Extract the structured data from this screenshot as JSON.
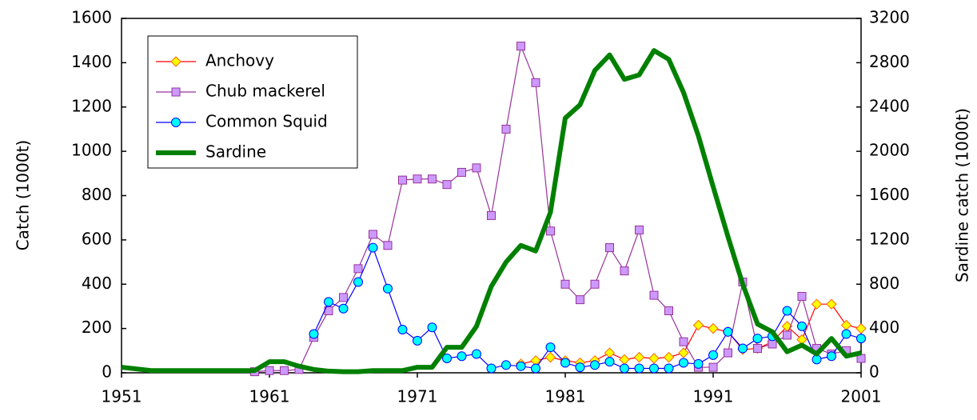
{
  "chart_data": {
    "type": "line",
    "y_label": "Catch (1000t)",
    "y2_label": "Sardine catch (1000t)",
    "x": [
      1951,
      1952,
      1953,
      1954,
      1955,
      1956,
      1957,
      1958,
      1959,
      1960,
      1961,
      1962,
      1963,
      1964,
      1965,
      1966,
      1967,
      1968,
      1969,
      1970,
      1971,
      1972,
      1973,
      1974,
      1975,
      1976,
      1977,
      1978,
      1979,
      1980,
      1981,
      1982,
      1983,
      1984,
      1985,
      1986,
      1987,
      1988,
      1989,
      1990,
      1991,
      1992,
      1993,
      1994,
      1995,
      1996,
      1997,
      1998,
      1999,
      2000,
      2001
    ],
    "xlim": [
      1951,
      2001
    ],
    "xticks": [
      1951,
      1961,
      1971,
      1981,
      1991,
      2001
    ],
    "ylim": [
      0,
      1600
    ],
    "yticks": [
      0,
      200,
      400,
      600,
      800,
      1000,
      1200,
      1400,
      1600
    ],
    "y2lim": [
      0,
      3200
    ],
    "y2ticks": [
      0,
      400,
      800,
      1200,
      1600,
      2000,
      2400,
      2800,
      3200
    ],
    "legend": "upper left",
    "series": [
      {
        "name": "Anchovy",
        "color": "#ff0000",
        "marker": "diamond",
        "marker_fill": "#ffff00",
        "marker_stroke": "#ff6600",
        "line_width": 1.2,
        "values": [
          null,
          null,
          null,
          null,
          null,
          null,
          null,
          null,
          null,
          null,
          null,
          null,
          null,
          null,
          null,
          null,
          null,
          null,
          null,
          null,
          null,
          null,
          null,
          null,
          null,
          null,
          null,
          40,
          55,
          70,
          55,
          45,
          55,
          90,
          60,
          70,
          65,
          70,
          90,
          215,
          200,
          185,
          105,
          110,
          140,
          210,
          150,
          310,
          310,
          215,
          200
        ]
      },
      {
        "name": "Chub mackerel",
        "color": "#993399",
        "marker": "square",
        "marker_fill": "#cc99ff",
        "marker_stroke": "#993399",
        "line_width": 1.2,
        "values": [
          null,
          null,
          null,
          null,
          null,
          null,
          null,
          null,
          null,
          5,
          10,
          10,
          15,
          160,
          280,
          340,
          470,
          625,
          575,
          870,
          875,
          875,
          850,
          905,
          925,
          710,
          1100,
          1475,
          1310,
          640,
          400,
          330,
          400,
          565,
          460,
          645,
          350,
          280,
          140,
          25,
          25,
          90,
          410,
          110,
          130,
          170,
          345,
          110,
          85,
          100,
          65
        ]
      },
      {
        "name": "Common Squid",
        "color": "#0000ff",
        "marker": "circle",
        "marker_fill": "#00ffff",
        "marker_stroke": "#0000ff",
        "line_width": 1.2,
        "values": [
          null,
          null,
          null,
          null,
          null,
          null,
          null,
          null,
          null,
          null,
          null,
          null,
          null,
          175,
          320,
          290,
          410,
          565,
          380,
          195,
          145,
          205,
          65,
          75,
          85,
          20,
          35,
          30,
          20,
          115,
          45,
          25,
          35,
          50,
          20,
          20,
          20,
          20,
          45,
          40,
          80,
          185,
          110,
          155,
          165,
          280,
          210,
          60,
          75,
          175,
          155
        ]
      },
      {
        "name": "Sardine",
        "color": "#008000",
        "marker": "none",
        "line_width": 6,
        "axis": "y2",
        "values": [
          50,
          35,
          20,
          20,
          20,
          20,
          20,
          20,
          20,
          20,
          100,
          100,
          60,
          30,
          15,
          10,
          10,
          20,
          20,
          20,
          50,
          50,
          230,
          230,
          420,
          780,
          1000,
          1150,
          1100,
          1450,
          2300,
          2420,
          2730,
          2870,
          2650,
          2690,
          2910,
          2830,
          2530,
          2140,
          1680,
          1230,
          800,
          440,
          370,
          190,
          250,
          170,
          310,
          150,
          180
        ]
      }
    ]
  }
}
